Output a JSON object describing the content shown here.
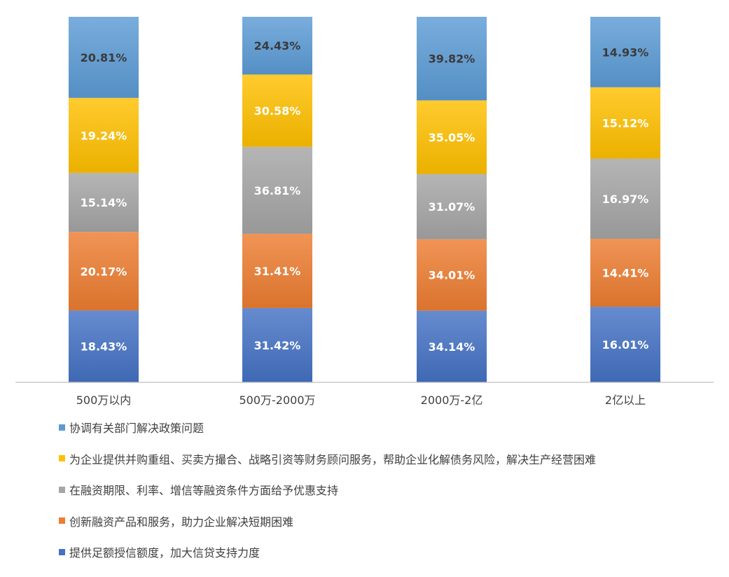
{
  "chart_data": {
    "type": "bar",
    "stacked": true,
    "percent_stacked": true,
    "categories": [
      "500万以内",
      "500万-2000万",
      "2000万-2亿",
      "2亿以上"
    ],
    "series": [
      {
        "name": "提供足额授信额度，加大信贷支持力度",
        "color": "#4472C4",
        "values": [
          18.43,
          31.42,
          34.14,
          16.01
        ],
        "labels": [
          "18.43%",
          "31.42%",
          "34.14%",
          "16.01%"
        ]
      },
      {
        "name": "创新融资产品和服务，助力企业解决短期困难",
        "color": "#ED7D31",
        "values": [
          20.17,
          31.41,
          34.01,
          14.41
        ],
        "labels": [
          "20.17%",
          "31.41%",
          "34.01%",
          "14.41%"
        ]
      },
      {
        "name": "在融资期限、利率、增信等融资条件方面给予优惠支持",
        "color": "#A5A5A5",
        "values": [
          15.14,
          36.81,
          31.07,
          16.97
        ],
        "labels": [
          "15.14%",
          "36.81%",
          "31.07%",
          "16.97%"
        ]
      },
      {
        "name": "为企业提供并购重组、买卖方撮合、战略引资等财务顾问服务，帮助企业化解债务风险，解决生产经营困难",
        "color": "#FFC000",
        "values": [
          19.24,
          30.58,
          35.05,
          15.12
        ],
        "labels": [
          "19.24%",
          "30.58%",
          "35.05%",
          "15.12%"
        ]
      },
      {
        "name": "协调有关部门解决政策问题",
        "color": "#5B9BD5",
        "values": [
          20.81,
          24.43,
          39.82,
          14.93
        ],
        "labels": [
          "20.81%",
          "24.43%",
          "39.82%",
          "14.93%"
        ]
      }
    ],
    "legend_position": "bottom",
    "legend_order": [
      4,
      3,
      2,
      1,
      0
    ],
    "gridlines": false
  }
}
